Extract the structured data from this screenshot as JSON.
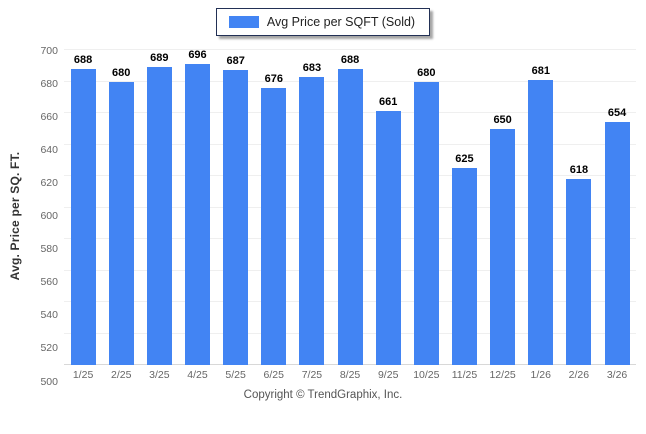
{
  "legend": {
    "label": "Avg Price per SQFT (Sold)",
    "swatch_color": "#4284F3"
  },
  "footer": {
    "copyright": "Copyright © TrendGraphix, Inc."
  },
  "chart_data": {
    "type": "bar",
    "title": "Avg Price per SQFT (Sold)",
    "categories": [
      "1/25",
      "2/25",
      "3/25",
      "4/25",
      "5/25",
      "6/25",
      "7/25",
      "8/25",
      "9/25",
      "10/25",
      "11/25",
      "12/25",
      "1/26",
      "2/26",
      "3/26"
    ],
    "values": [
      688,
      680,
      689,
      696,
      687,
      676,
      683,
      688,
      661,
      680,
      625,
      650,
      681,
      618,
      654
    ],
    "xlabel": "",
    "ylabel": "Avg. Price per SQ. FT.",
    "ylim": [
      500,
      700
    ],
    "ytick_step": 20,
    "grid": "horizontal",
    "legend_position": "top-center",
    "bar_color": "#4284F3",
    "value_labels": true,
    "colors": {
      "gridline": "#efefef",
      "baseline": "#d8d8d8",
      "tick_text": "#666666",
      "value_text": "#000000"
    }
  }
}
